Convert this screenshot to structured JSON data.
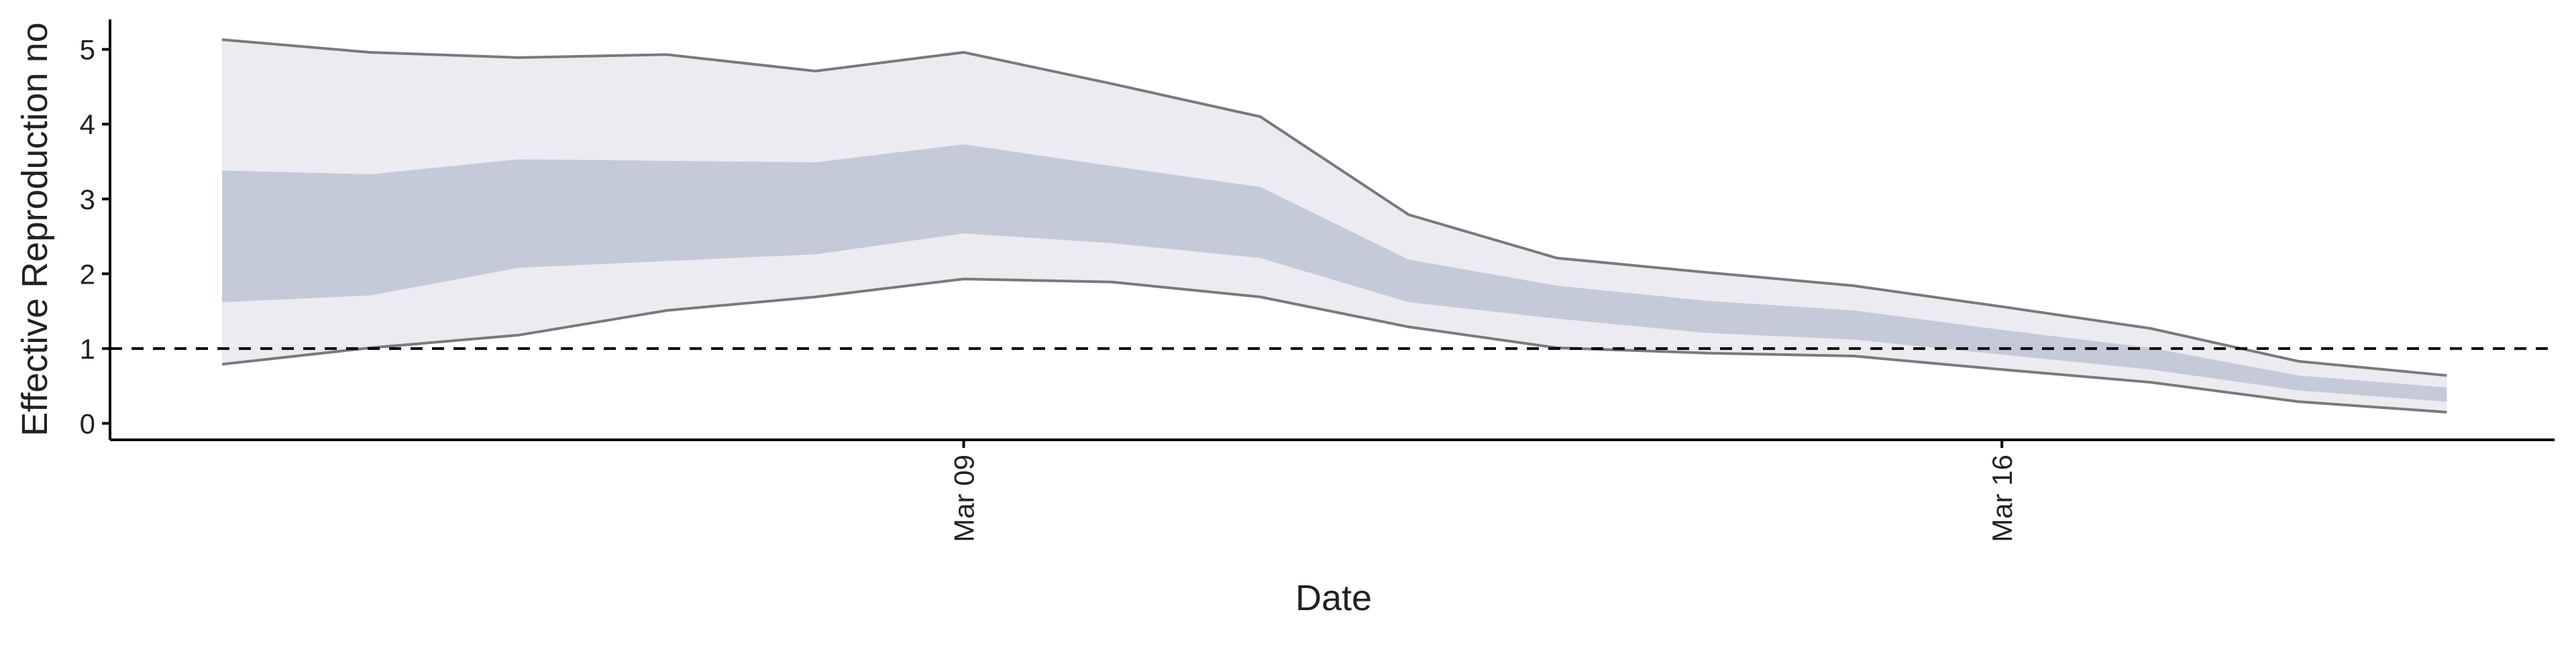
{
  "chart_data": {
    "type": "band",
    "x": [
      "Mar 04",
      "Mar 05",
      "Mar 06",
      "Mar 07",
      "Mar 08",
      "Mar 09",
      "Mar 10",
      "Mar 11",
      "Mar 12",
      "Mar 13",
      "Mar 14",
      "Mar 15",
      "Mar 16",
      "Mar 17",
      "Mar 18",
      "Mar 19"
    ],
    "xticks": [
      "Mar 09",
      "Mar 16"
    ],
    "x_label": "Date",
    "y_label": "Effective Reproduction no",
    "ylim": [
      -0.22,
      5.4
    ],
    "yticks": [
      0,
      1,
      2,
      3,
      4,
      5
    ],
    "reference_line": 1,
    "outer": {
      "color": "#ebebf1",
      "line_color": "#7a7a7a",
      "upper": [
        5.13,
        4.96,
        4.89,
        4.93,
        4.71,
        4.96,
        4.54,
        4.1,
        2.79,
        2.21,
        2.02,
        1.84,
        1.56,
        1.27,
        0.83,
        0.64
      ],
      "lower": [
        0.79,
        1.01,
        1.18,
        1.51,
        1.69,
        1.93,
        1.89,
        1.69,
        1.29,
        1.01,
        0.94,
        0.9,
        0.72,
        0.55,
        0.29,
        0.15
      ]
    },
    "inner": {
      "color": "#c5cad9",
      "upper": [
        3.38,
        3.33,
        3.53,
        3.51,
        3.49,
        3.73,
        3.44,
        3.16,
        2.19,
        1.84,
        1.64,
        1.51,
        1.25,
        1.01,
        0.64,
        0.48
      ],
      "lower": [
        1.62,
        1.71,
        2.08,
        2.17,
        2.26,
        2.54,
        2.41,
        2.21,
        1.62,
        1.4,
        1.21,
        1.12,
        0.92,
        0.72,
        0.44,
        0.29
      ]
    }
  }
}
